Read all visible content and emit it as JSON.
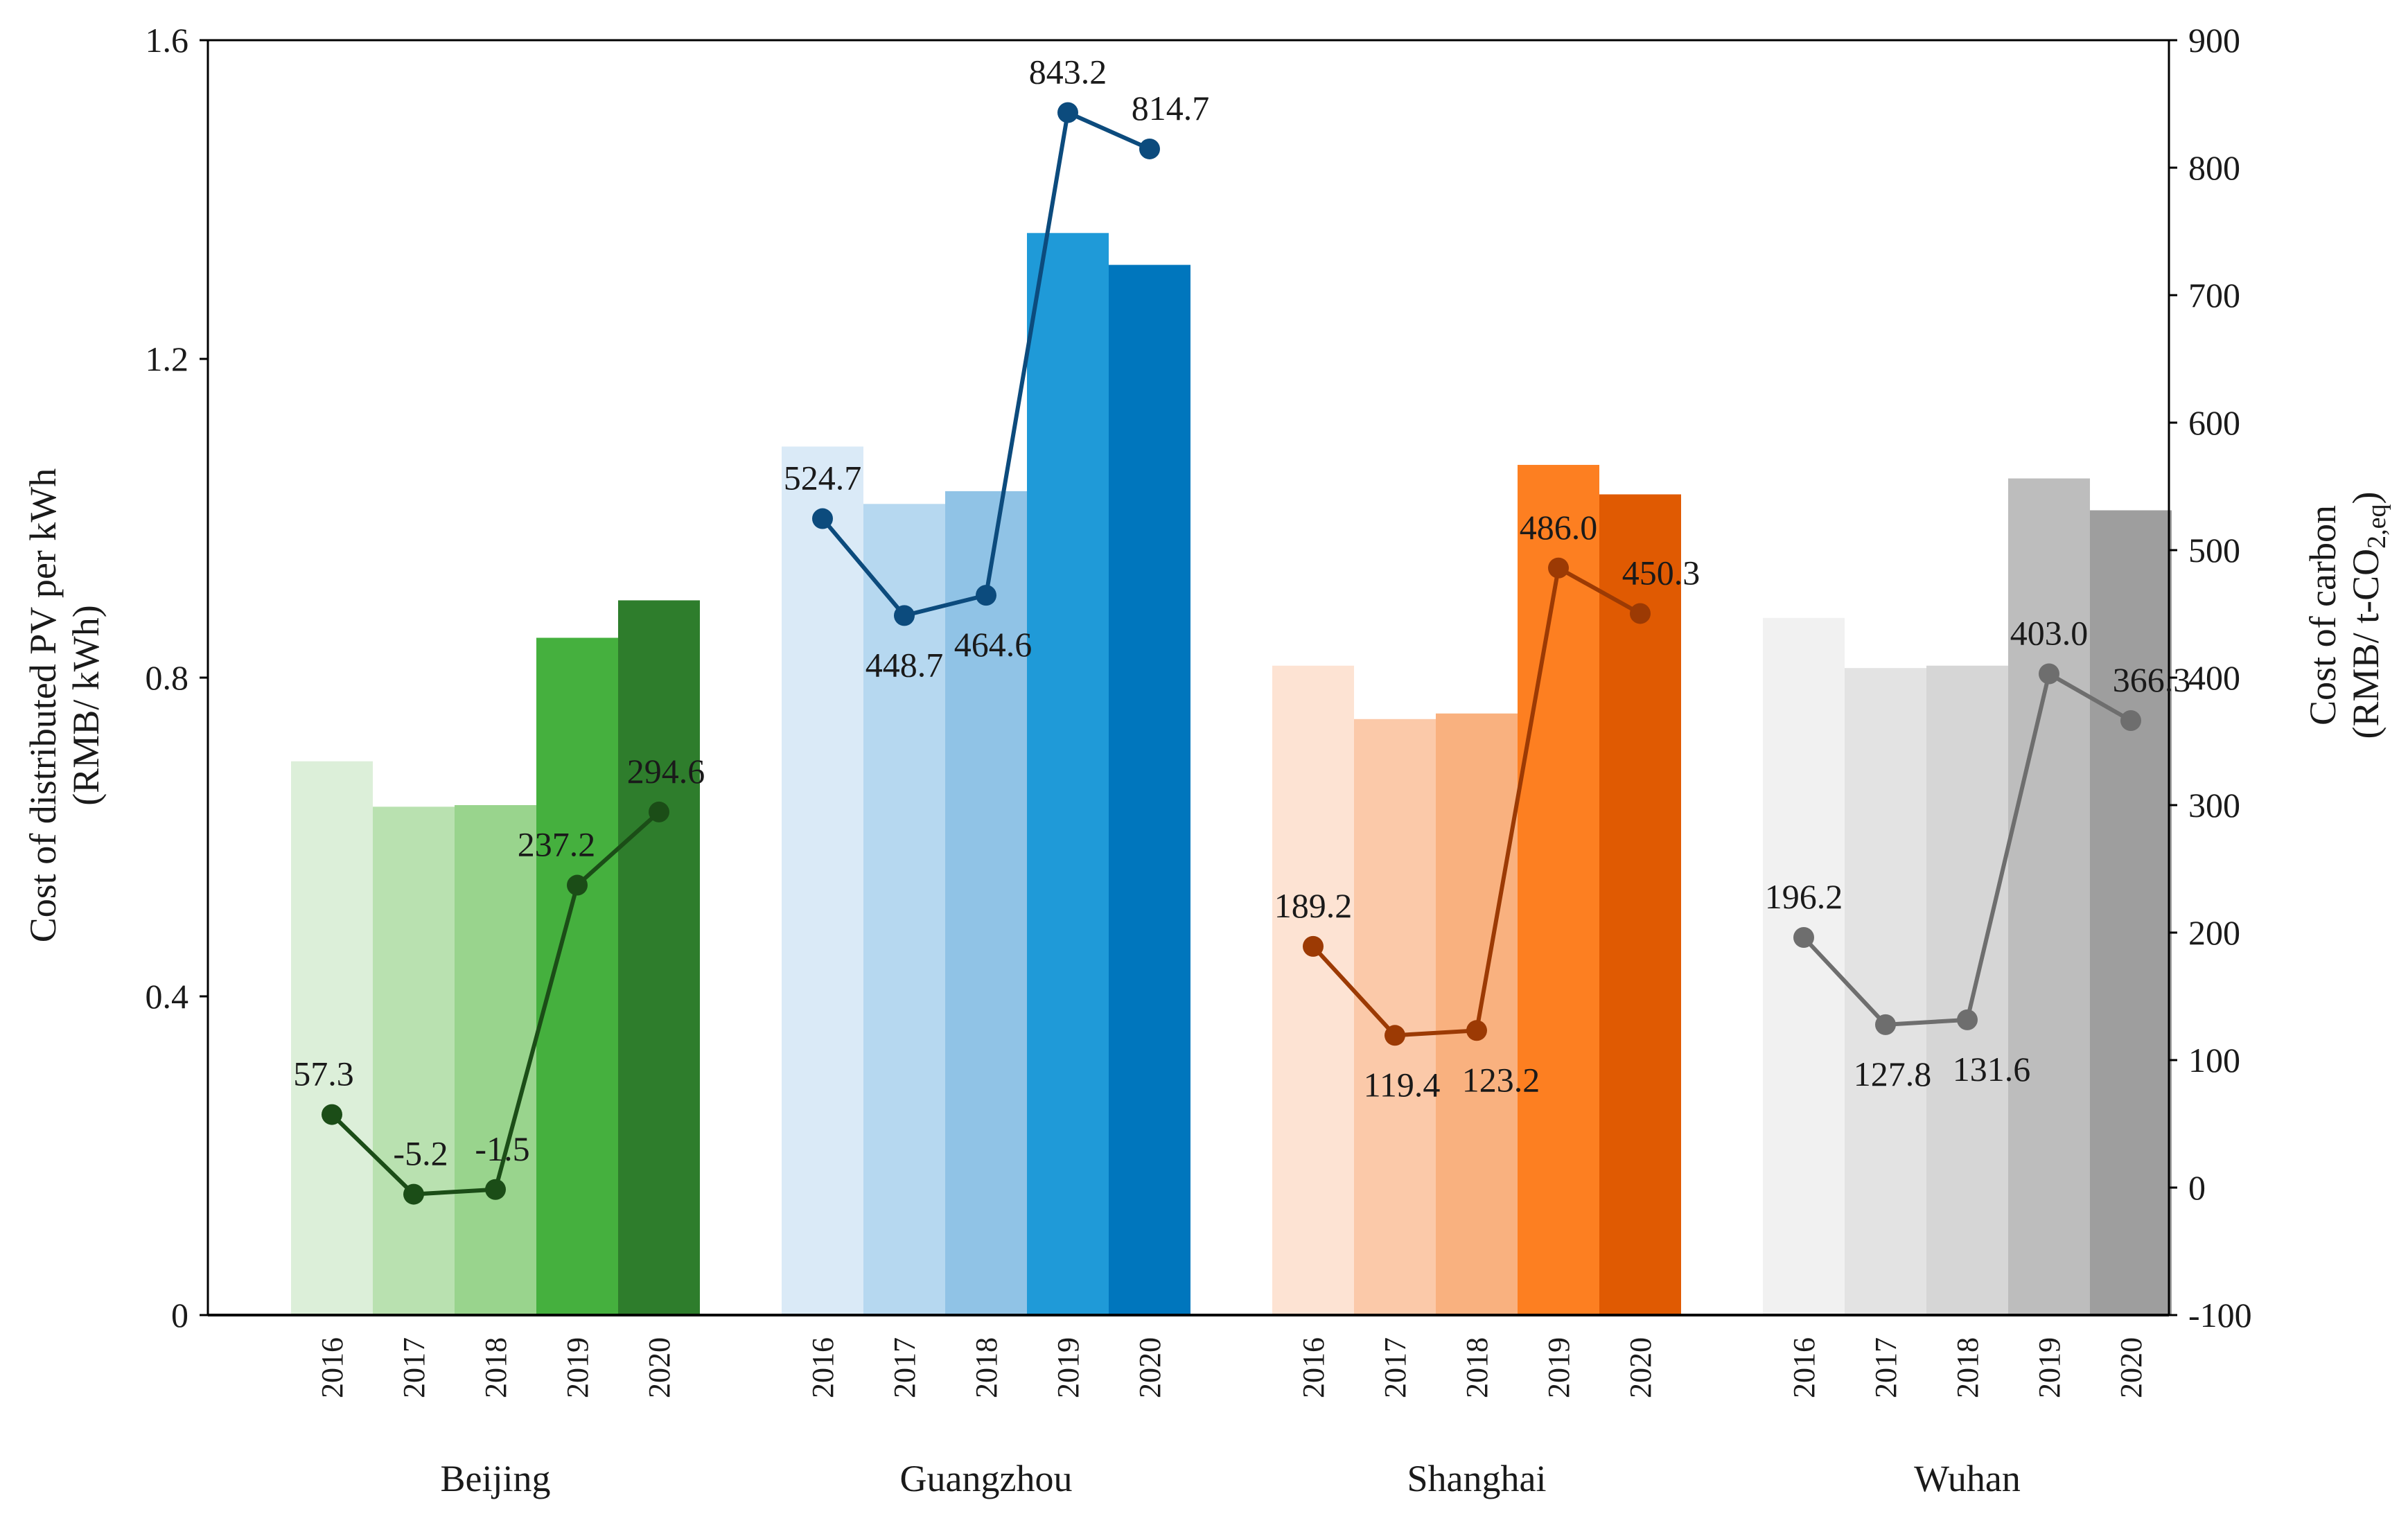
{
  "chart_data": {
    "type": "bar+line",
    "left_axis": {
      "title_line1": "Cost of distributed PV per kWh",
      "title_line2": "(RMB/ kWh)",
      "min": 0,
      "max": 1.6,
      "ticks": [
        "0",
        "0.4",
        "0.8",
        "1.2",
        "1.6"
      ],
      "tick_values": [
        0,
        0.4,
        0.8,
        1.2,
        1.6
      ]
    },
    "right_axis": {
      "title_line1": "Cost of carbon",
      "title_line2_prefix": "(RMB/ t-CO",
      "title_line2_sub": "2,eq",
      "title_line2_suffix": ")",
      "min": -100,
      "max": 900,
      "ticks": [
        "-100",
        "0",
        "100",
        "200",
        "300",
        "400",
        "500",
        "600",
        "700",
        "800",
        "900"
      ],
      "tick_values": [
        -100,
        0,
        100,
        200,
        300,
        400,
        500,
        600,
        700,
        800,
        900
      ]
    },
    "years": [
      "2016",
      "2017",
      "2018",
      "2019",
      "2020"
    ],
    "groups": [
      {
        "city": "Beijing",
        "pv_cost": [
          0.695,
          0.638,
          0.64,
          0.85,
          0.897
        ],
        "carbon_cost": [
          57.3,
          -5.2,
          -1.5,
          237.2,
          294.6
        ],
        "carbon_labels": [
          "57.3",
          "-5.2",
          "-1.5",
          "237.2",
          "294.6"
        ],
        "bar_colors": [
          "#dcefd9",
          "#b9e1b0",
          "#99d48d",
          "#45b03e",
          "#2e7d2c"
        ],
        "line_color": "#1b4d17"
      },
      {
        "city": "Guangzhou",
        "pv_cost": [
          1.09,
          1.018,
          1.034,
          1.358,
          1.318
        ],
        "carbon_cost": [
          524.7,
          448.7,
          464.6,
          843.2,
          814.7
        ],
        "carbon_labels": [
          "524.7",
          "448.7",
          "464.6",
          "843.2",
          "814.7"
        ],
        "bar_colors": [
          "#daeaf7",
          "#b6d8f0",
          "#90c3e6",
          "#1f9ad8",
          "#0076bd"
        ],
        "line_color": "#0c4b7d"
      },
      {
        "city": "Shanghai",
        "pv_cost": [
          0.815,
          0.748,
          0.755,
          1.067,
          1.03
        ],
        "carbon_cost": [
          189.2,
          119.4,
          123.2,
          486.0,
          450.3
        ],
        "carbon_labels": [
          "189.2",
          "119.4",
          "123.2",
          "486.0",
          "450.3"
        ],
        "bar_colors": [
          "#fde3d3",
          "#fbc9a9",
          "#f9b17f",
          "#fd7f21",
          "#e05a02"
        ],
        "line_color": "#9c3a04"
      },
      {
        "city": "Wuhan",
        "pv_cost": [
          0.875,
          0.812,
          0.815,
          1.05,
          1.01
        ],
        "carbon_cost": [
          196.2,
          127.8,
          131.6,
          403.0,
          366.3
        ],
        "carbon_labels": [
          "196.2",
          "127.8",
          "131.6",
          "403.0",
          "366.3"
        ],
        "bar_colors": [
          "#f1f1f1",
          "#e3e3e3",
          "#d6d6d6",
          "#bdbdbd",
          "#9e9e9e"
        ],
        "line_color": "#6e6e6e"
      }
    ]
  }
}
